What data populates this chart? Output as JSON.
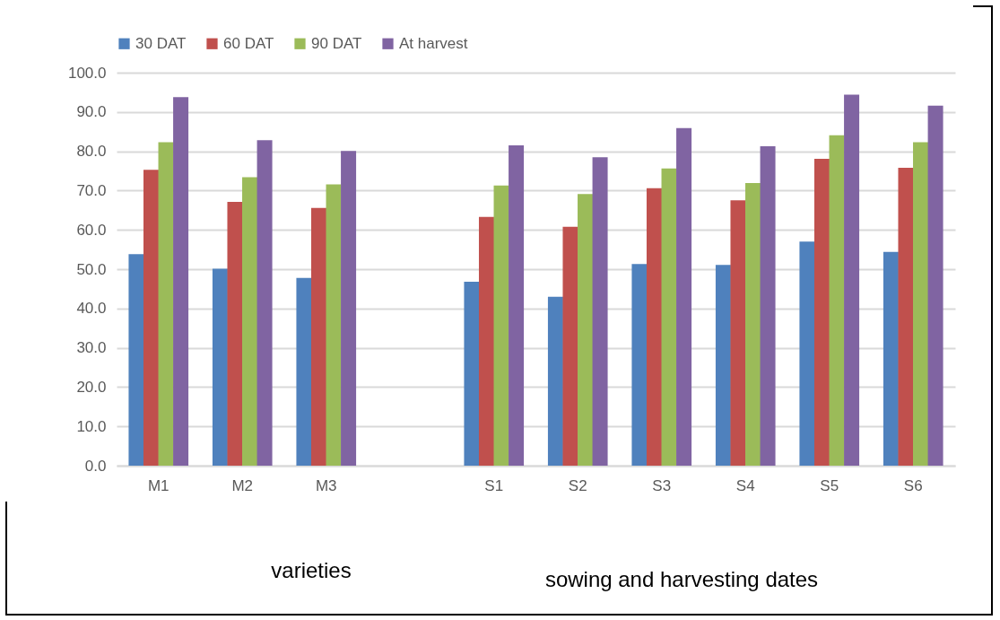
{
  "chart_data": {
    "type": "bar",
    "categories": [
      "M1",
      "M2",
      "M3",
      null,
      "S1",
      "S2",
      "S3",
      "S4",
      "S5",
      "S6"
    ],
    "series": [
      {
        "name": "30 DAT",
        "color": "#4f81bd",
        "values": [
          53.8,
          50.1,
          47.8,
          null,
          46.8,
          43.0,
          51.3,
          51.1,
          57.0,
          54.4
        ]
      },
      {
        "name": "60 DAT",
        "color": "#c0504d",
        "values": [
          75.3,
          67.1,
          65.6,
          null,
          63.3,
          60.8,
          70.6,
          67.5,
          78.1,
          75.8
        ]
      },
      {
        "name": "90 DAT",
        "color": "#9bbb59",
        "values": [
          82.3,
          73.4,
          71.6,
          null,
          71.3,
          69.1,
          75.6,
          71.9,
          84.1,
          82.3
        ]
      },
      {
        "name": "At harvest",
        "color": "#8064a2",
        "values": [
          93.8,
          82.8,
          80.1,
          null,
          81.5,
          78.5,
          85.9,
          81.3,
          94.4,
          91.6
        ]
      }
    ],
    "ylim": [
      0,
      100
    ],
    "yticks": [
      {
        "value": 0,
        "label": "0.0"
      },
      {
        "value": 10,
        "label": "10.0"
      },
      {
        "value": 20,
        "label": "20.0"
      },
      {
        "value": 30,
        "label": "30.0"
      },
      {
        "value": 40,
        "label": "40.0"
      },
      {
        "value": 50,
        "label": "50.0"
      },
      {
        "value": 60,
        "label": "60.0"
      },
      {
        "value": 70,
        "label": "70.0"
      },
      {
        "value": 80,
        "label": "80.0"
      },
      {
        "value": 90,
        "label": "90.0"
      },
      {
        "value": 100,
        "label": "100.0"
      }
    ],
    "grid": "y",
    "legend": "top",
    "annotations": [
      "varieties",
      "sowing and harvesting dates"
    ]
  }
}
